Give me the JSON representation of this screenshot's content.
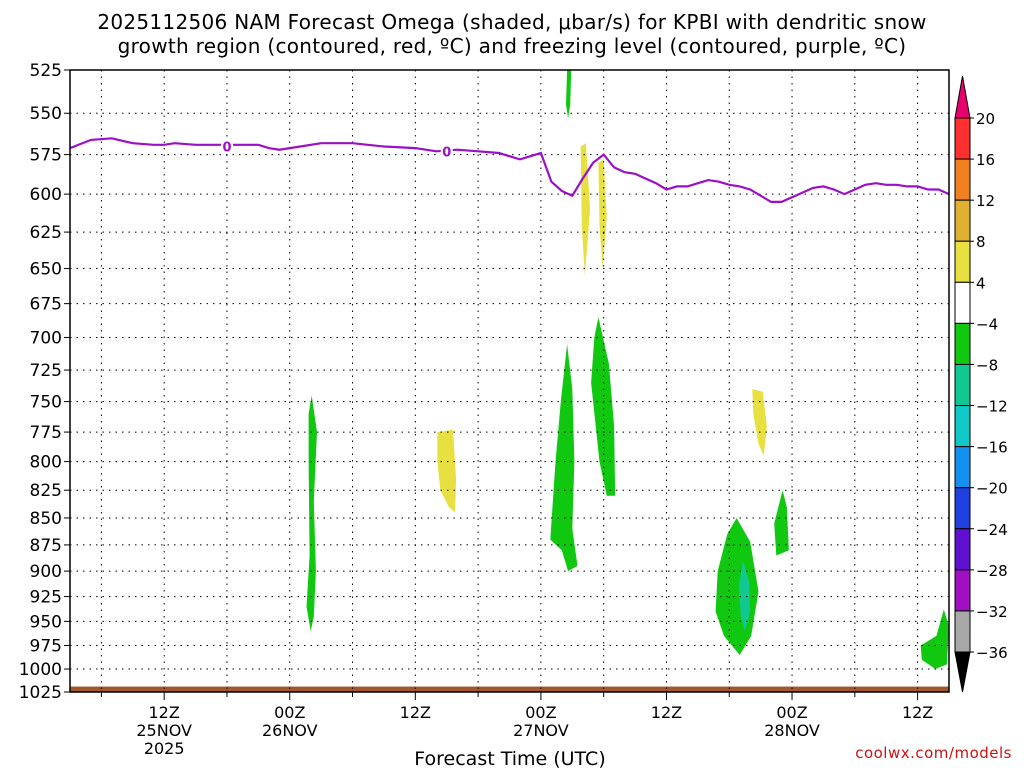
{
  "title": {
    "line1": "2025112506 NAM Forecast Omega (shaded, μbar/s) for KPBI with dendritic snow",
    "line2": "growth region (contoured, red, ºC) and freezing level (contoured, purple, ºC)"
  },
  "credit": "coolwx.com/models",
  "chart_data": {
    "type": "heatmap",
    "xlabel": "Forecast Time (UTC)",
    "x_range_hours": [
      -9,
      75
    ],
    "y_pressure_range_hpa": [
      525,
      1025
    ],
    "y_scale": "log-pressure (inverted)",
    "grid": true,
    "y_ticks": [
      525,
      550,
      575,
      600,
      625,
      650,
      675,
      700,
      725,
      750,
      775,
      800,
      825,
      850,
      875,
      900,
      925,
      950,
      975,
      1000,
      1025
    ],
    "x_ticks": [
      {
        "hour": 0,
        "label": "12Z",
        "date": "25NOV",
        "year": "2025"
      },
      {
        "hour": 12,
        "label": "00Z",
        "date": "26NOV",
        "year": ""
      },
      {
        "hour": 24,
        "label": "12Z",
        "date": "",
        "year": ""
      },
      {
        "hour": 36,
        "label": "00Z",
        "date": "27NOV",
        "year": ""
      },
      {
        "hour": 48,
        "label": "12Z",
        "date": "",
        "year": ""
      },
      {
        "hour": 60,
        "label": "00Z",
        "date": "28NOV",
        "year": ""
      },
      {
        "hour": 72,
        "label": "12Z",
        "date": "",
        "year": ""
      }
    ],
    "colorbar": {
      "labels": [
        "20",
        "16",
        "12",
        "8",
        "4",
        "−4",
        "−8",
        "−12",
        "−16",
        "−20",
        "−24",
        "−28",
        "−32",
        "−36"
      ],
      "colors": [
        "#e8006e",
        "#ff3030",
        "#f08020",
        "#e0b030",
        "#e8e040",
        "#ffffff",
        "#10c810",
        "#10c890",
        "#10c8c8",
        "#1490ee",
        "#2040e0",
        "#6010d0",
        "#a010c0",
        "#a8a8a8",
        "#000000"
      ]
    },
    "freezing_level": {
      "label": "0",
      "color": "#9a10c8",
      "points": [
        [
          -9,
          571
        ],
        [
          -7,
          566
        ],
        [
          -5,
          565
        ],
        [
          -3,
          568
        ],
        [
          -1,
          569
        ],
        [
          0,
          569
        ],
        [
          1,
          568
        ],
        [
          3,
          569
        ],
        [
          6,
          569
        ],
        [
          9,
          569
        ],
        [
          10,
          571
        ],
        [
          11,
          572
        ],
        [
          13,
          570
        ],
        [
          15,
          568
        ],
        [
          18,
          568
        ],
        [
          21,
          570
        ],
        [
          24,
          571
        ],
        [
          26,
          573
        ],
        [
          28,
          572
        ],
        [
          30,
          573
        ],
        [
          32,
          574
        ],
        [
          33,
          576
        ],
        [
          34,
          578
        ],
        [
          35,
          576
        ],
        [
          36,
          574
        ],
        [
          37,
          592
        ],
        [
          38,
          598
        ],
        [
          39,
          601
        ],
        [
          40,
          590
        ],
        [
          41,
          580
        ],
        [
          42,
          575
        ],
        [
          43,
          583
        ],
        [
          44,
          586
        ],
        [
          45,
          587
        ],
        [
          46,
          590
        ],
        [
          47,
          593
        ],
        [
          48,
          597
        ],
        [
          49,
          595
        ],
        [
          50,
          595
        ],
        [
          51,
          593
        ],
        [
          52,
          591
        ],
        [
          53,
          592
        ],
        [
          54,
          594
        ],
        [
          55,
          595
        ],
        [
          56,
          597
        ],
        [
          57,
          601
        ],
        [
          58,
          605
        ],
        [
          59,
          605
        ],
        [
          60,
          602
        ],
        [
          61,
          599
        ],
        [
          62,
          596
        ],
        [
          63,
          595
        ],
        [
          64,
          597
        ],
        [
          65,
          600
        ],
        [
          66,
          597
        ],
        [
          67,
          594
        ],
        [
          68,
          593
        ],
        [
          69,
          594
        ],
        [
          70,
          594
        ],
        [
          71,
          595
        ],
        [
          72,
          595
        ],
        [
          73,
          597
        ],
        [
          74,
          597
        ],
        [
          75,
          600
        ]
      ],
      "label_positions": [
        [
          6,
          570
        ],
        [
          27,
          573
        ]
      ]
    },
    "terrain": {
      "color": "#a0582c",
      "top_hpa": 1019
    },
    "omega_regions": [
      {
        "fill": "#10c810",
        "points": [
          [
            38.5,
            525
          ],
          [
            38.9,
            525
          ],
          [
            38.8,
            545
          ],
          [
            38.6,
            553
          ],
          [
            38.4,
            545
          ]
        ]
      },
      {
        "fill": "#e8e040",
        "points": [
          [
            39.8,
            570
          ],
          [
            40.3,
            568
          ],
          [
            40.7,
            610
          ],
          [
            40.2,
            655
          ],
          [
            39.9,
            620
          ]
        ]
      },
      {
        "fill": "#e8e040",
        "points": [
          [
            41.5,
            580
          ],
          [
            42.0,
            578
          ],
          [
            42.3,
            615
          ],
          [
            41.9,
            650
          ],
          [
            41.6,
            620
          ]
        ]
      },
      {
        "fill": "#10c810",
        "points": [
          [
            41.5,
            685
          ],
          [
            42.5,
            720
          ],
          [
            43.0,
            770
          ],
          [
            43.1,
            830
          ],
          [
            42.3,
            830
          ],
          [
            41.6,
            800
          ],
          [
            40.8,
            735
          ],
          [
            41.1,
            700
          ]
        ]
      },
      {
        "fill": "#10c810",
        "points": [
          [
            38.5,
            705
          ],
          [
            39.0,
            740
          ],
          [
            39.2,
            800
          ],
          [
            39.0,
            860
          ],
          [
            39.5,
            895
          ],
          [
            38.6,
            900
          ],
          [
            38.0,
            880
          ],
          [
            36.9,
            870
          ],
          [
            37.4,
            800
          ],
          [
            37.9,
            750
          ]
        ]
      },
      {
        "fill": "#10c810",
        "points": [
          [
            14.1,
            745
          ],
          [
            14.6,
            775
          ],
          [
            14.3,
            835
          ],
          [
            14.5,
            900
          ],
          [
            14.3,
            945
          ],
          [
            14.0,
            960
          ],
          [
            13.6,
            935
          ],
          [
            13.9,
            885
          ],
          [
            13.8,
            800
          ],
          [
            13.8,
            760
          ]
        ]
      },
      {
        "fill": "#e8e040",
        "points": [
          [
            26.1,
            775
          ],
          [
            27.6,
            773
          ],
          [
            27.9,
            815
          ],
          [
            27.8,
            845
          ],
          [
            27.2,
            840
          ],
          [
            26.4,
            825
          ],
          [
            26.1,
            800
          ]
        ]
      },
      {
        "fill": "#e8e040",
        "points": [
          [
            56.2,
            740
          ],
          [
            57.2,
            742
          ],
          [
            57.6,
            770
          ],
          [
            57.3,
            795
          ],
          [
            56.8,
            785
          ],
          [
            56.3,
            760
          ]
        ]
      },
      {
        "fill": "#10c810",
        "points": [
          [
            59.1,
            825
          ],
          [
            59.5,
            840
          ],
          [
            59.7,
            880
          ],
          [
            58.5,
            885
          ],
          [
            58.3,
            855
          ]
        ]
      },
      {
        "fill": "#10c810",
        "points": [
          [
            54.7,
            850
          ],
          [
            56.0,
            872
          ],
          [
            56.8,
            920
          ],
          [
            56.1,
            965
          ],
          [
            55.0,
            985
          ],
          [
            53.5,
            965
          ],
          [
            52.7,
            940
          ],
          [
            52.9,
            900
          ],
          [
            53.8,
            865
          ]
        ]
      },
      {
        "fill": "#10c890",
        "points": [
          [
            55.3,
            890
          ],
          [
            55.9,
            910
          ],
          [
            56.0,
            940
          ],
          [
            55.5,
            960
          ],
          [
            55.1,
            945
          ],
          [
            54.9,
            915
          ]
        ]
      },
      {
        "fill": "#10c810",
        "points": [
          [
            74.5,
            938
          ],
          [
            75.0,
            955
          ],
          [
            74.8,
            995
          ],
          [
            73.7,
            1000
          ],
          [
            72.4,
            990
          ],
          [
            72.3,
            975
          ],
          [
            73.8,
            965
          ]
        ]
      }
    ]
  }
}
